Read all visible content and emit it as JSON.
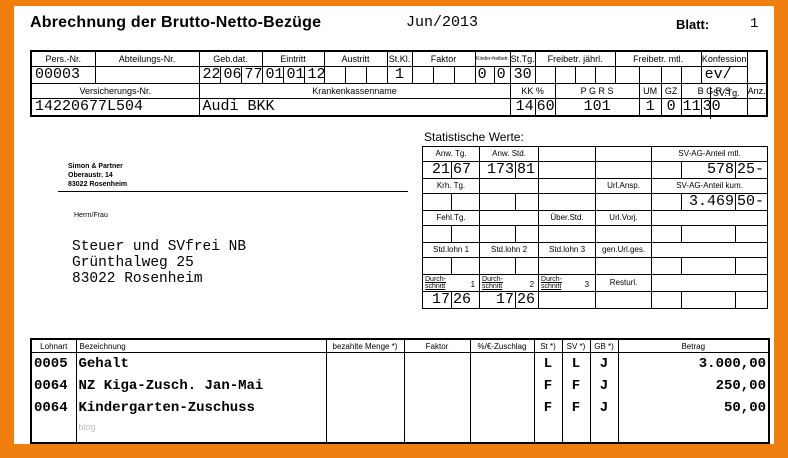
{
  "header": {
    "title": "Abrechnung der Brutto-Netto-Bezüge",
    "period": "Jun/2013",
    "blatt_label": "Blatt:",
    "blatt_value": "1"
  },
  "top_table": {
    "row1_labels": [
      "Pers.-Nr.",
      "Abteilungs-Nr.",
      "Geb.dat.",
      "Eintritt",
      "Austritt",
      "St.Kl.",
      "Faktor",
      "Kinder-freibetr.",
      "St.Tg.",
      "Freibetr. jährl.",
      "Freibetr. mtl.",
      "Konfession"
    ],
    "row1_values": {
      "pers_nr": "00003",
      "geb_d": "22",
      "geb_m": "06",
      "geb_y": "77",
      "ein_d": "01",
      "ein_m": "01",
      "ein_y": "12",
      "stkl": "1",
      "kinder_a": "0",
      "kinder_b": "0",
      "sttg": "30",
      "konfession": "ev/"
    },
    "row2_labels": {
      "vers": "Versicherungs-Nr.",
      "kk_name": "Krankenkassenname",
      "kk_pct": "KK %",
      "pgrs": "P G R S",
      "um": "UM",
      "gz": "GZ",
      "bgrs": "B G R S",
      "svtg": "SV.Tg.",
      "anzu": "Anz.U."
    },
    "row2_values": {
      "vers": "14220677L504",
      "kk_name": "Audi BKK",
      "kk_a": "14",
      "kk_b": "60",
      "pgrs": "101",
      "um": "1",
      "gz": "0",
      "bgrs": "1111",
      "svtg": "30"
    }
  },
  "employer": {
    "name": "Simon & Partner",
    "street": "Oberaustr. 14",
    "city": "83022 Rosenheim"
  },
  "recipient": {
    "salutation": "Herrn/Frau",
    "line1": "Steuer und SVfrei NB",
    "line2": "Grünthalweg 25",
    "line3": "83022 Rosenheim"
  },
  "stats": {
    "title": "Statistische Werte:",
    "anw_tg": "Anw. Tg.",
    "anw_std": "Anw. Std.",
    "sv_ag_mtl": "SV-AG-Anteil mtl.",
    "anw_tg_a": "21",
    "anw_tg_b": "67",
    "anw_std_a": "173",
    "anw_std_b": "81",
    "sv_ag_mtl_a": "578",
    "sv_ag_mtl_b": "25-",
    "krh_tg": "Krh. Tg.",
    "url_ansp": "Url.Ansp.",
    "sv_ag_kum": "SV-AG-Anteil kum.",
    "sv_ag_kum_a": "3.469",
    "sv_ag_kum_b": "50-",
    "fehl_tg": "Fehl.Tg.",
    "uber_std": "Über.Std.",
    "url_vorj": "Url.Vorj.",
    "std_lohn1": "Std.lohn 1",
    "std_lohn2": "Std.lohn 2",
    "std_lohn3": "Std.lohn 3",
    "gen_url": "gen.Url.ges.",
    "durch1": "Durch-schnitt",
    "n1": "1",
    "durch2": "Durch-schnitt",
    "n2": "2",
    "durch3": "Durch-schnitt",
    "n3": "3",
    "resturl": "Resturl.",
    "d1_a": "17",
    "d1_b": "26",
    "d2_a": "17",
    "d2_b": "26"
  },
  "items": {
    "headers": [
      "Lohnart",
      "Bezeichnung",
      "bezahlte Menge *)",
      "Faktor",
      "%/€-Zuschlag",
      "St *)",
      "SV *)",
      "GB *)",
      "Betrag"
    ],
    "rows": [
      {
        "lohnart": "0005",
        "bez": "Gehalt",
        "st": "L",
        "sv": "L",
        "gb": "J",
        "betrag": "3.000,00"
      },
      {
        "lohnart": "0064",
        "bez": "NZ Kiga-Zusch. Jan-Mai",
        "st": "F",
        "sv": "F",
        "gb": "J",
        "betrag": "250,00"
      },
      {
        "lohnart": "0064",
        "bez": "Kindergarten-Zuschuss",
        "st": "F",
        "sv": "F",
        "gb": "J",
        "betrag": "50,00"
      }
    ],
    "watermark": "blog"
  }
}
